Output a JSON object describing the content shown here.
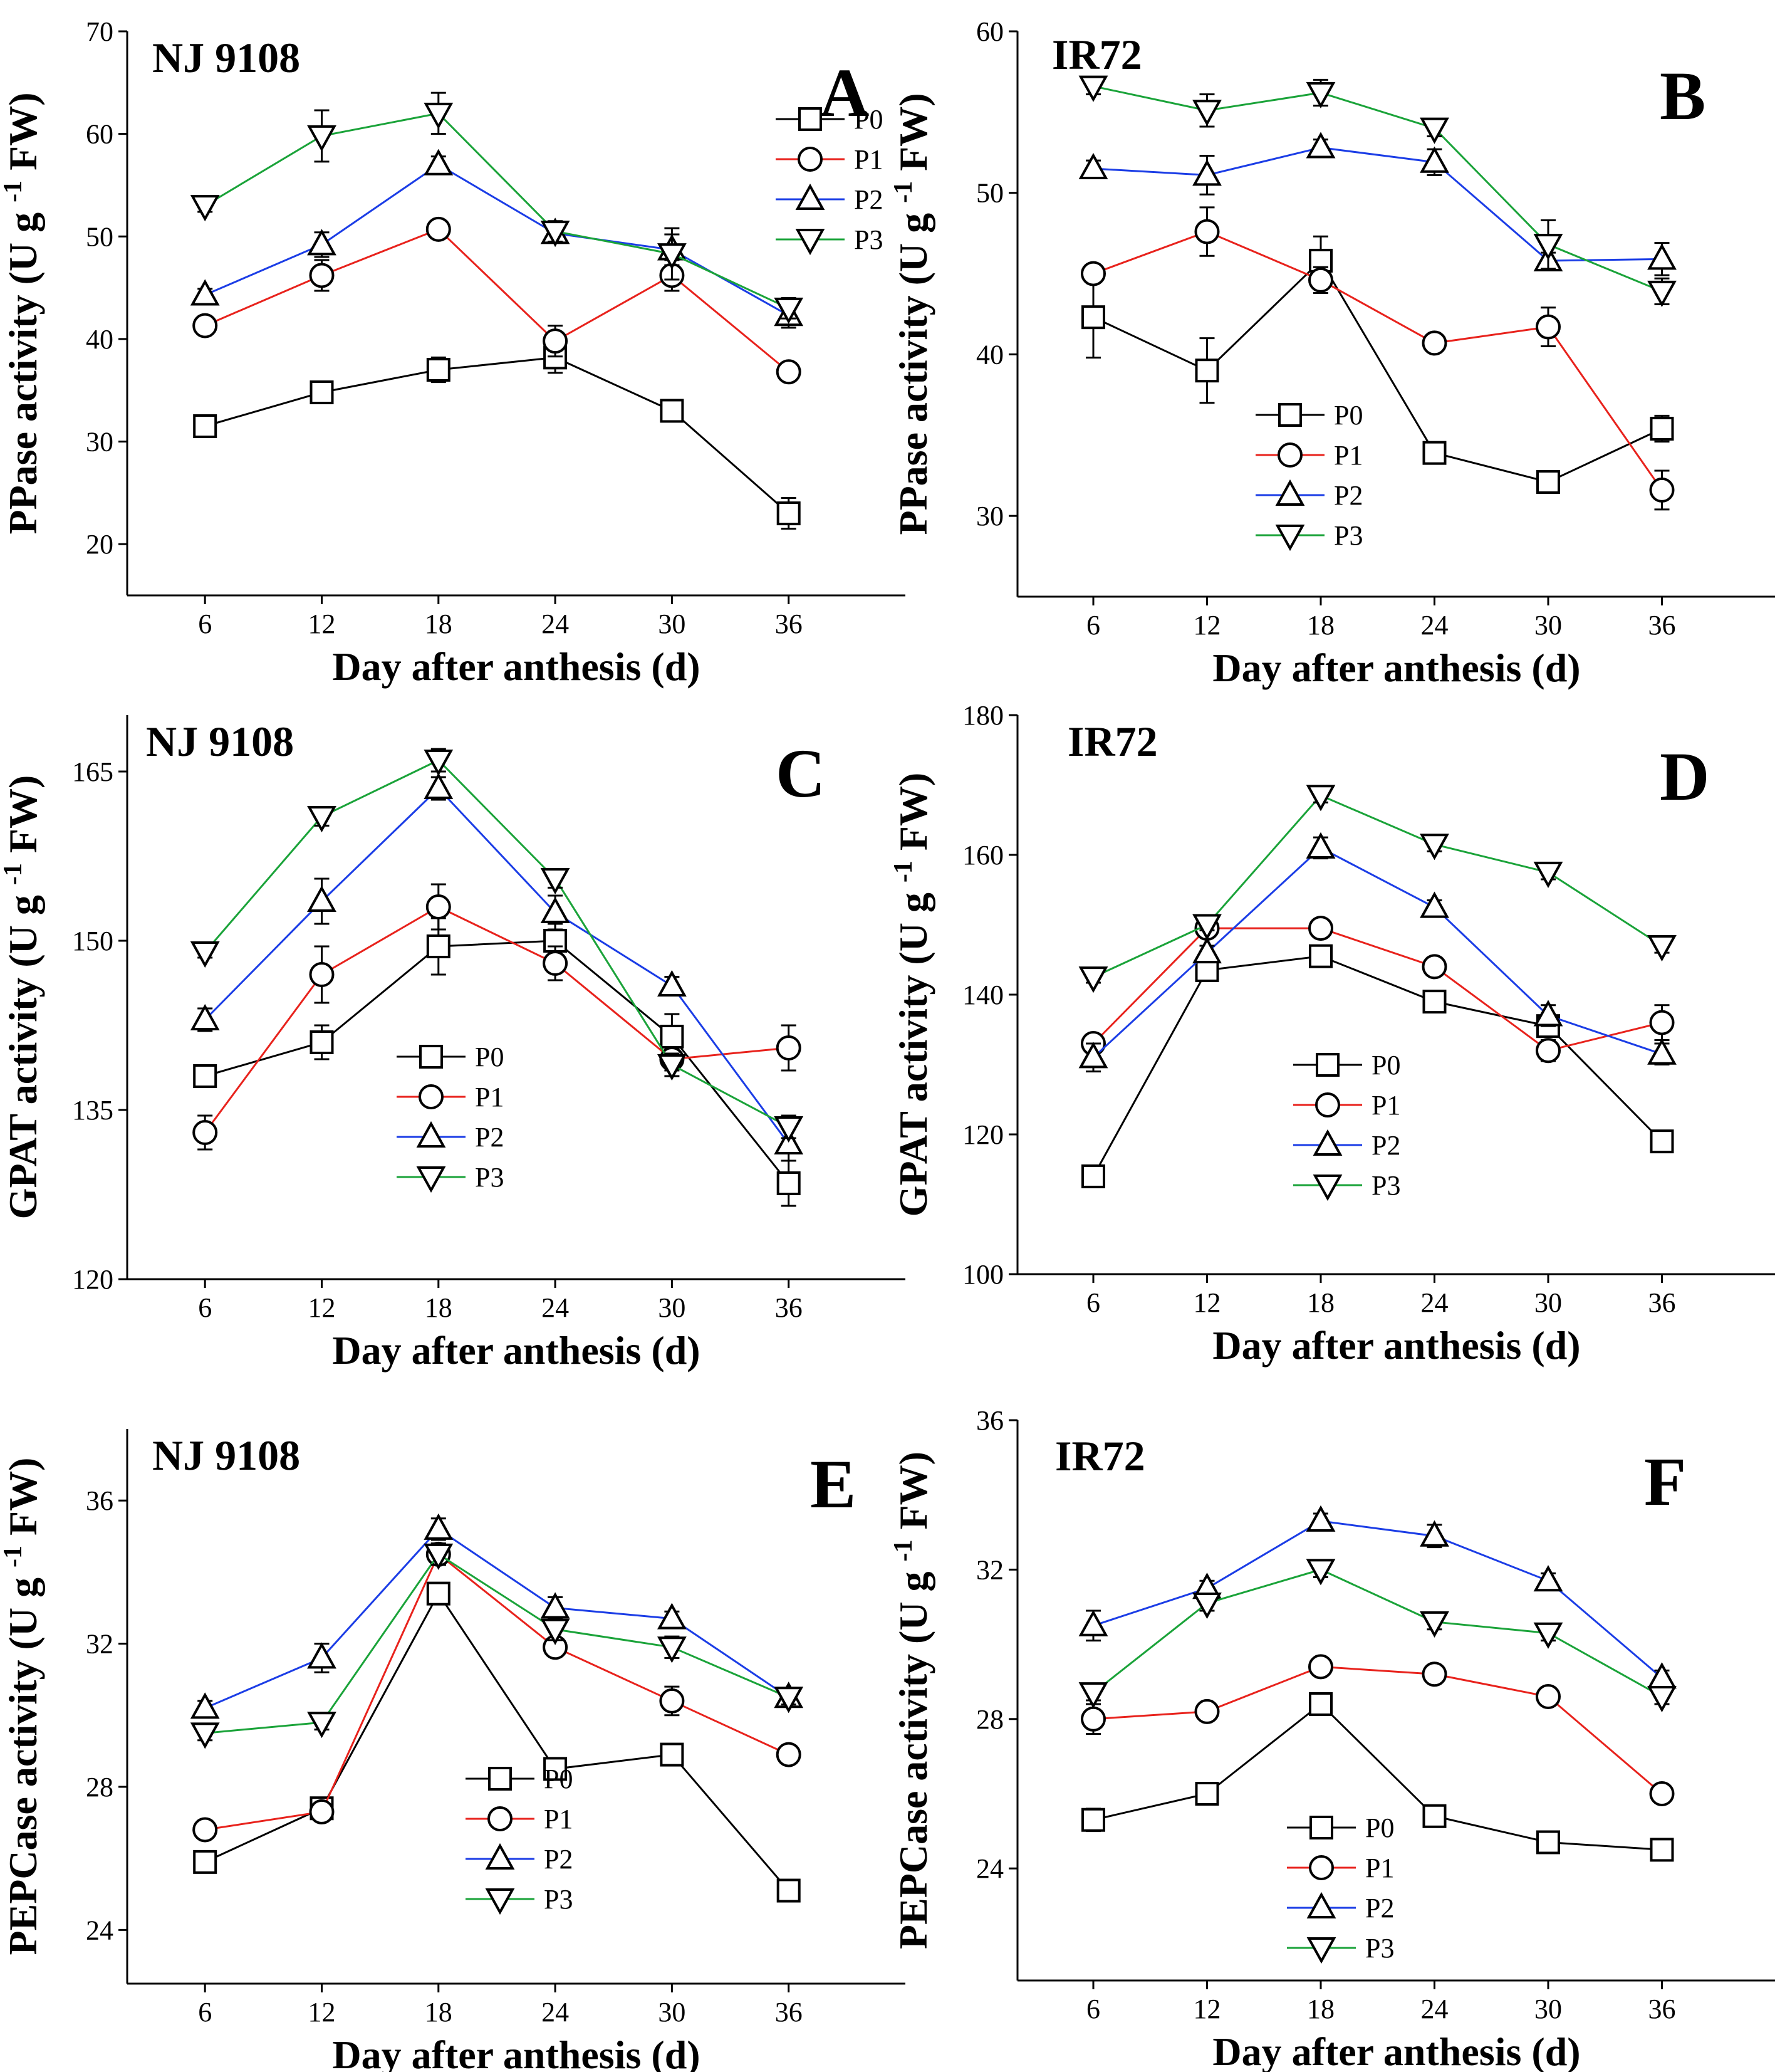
{
  "figure": {
    "legend_labels": [
      "P0",
      "P1",
      "P2",
      "P3"
    ],
    "series_colors": {
      "P0": "#000000",
      "P1": "#e8221c",
      "P2": "#1b3de6",
      "P3": "#1aa339"
    },
    "series_markers": {
      "P0": "square",
      "P1": "circle",
      "P2": "triangle-up",
      "P3": "triangle-down"
    }
  },
  "chart_data": [
    {
      "id": "A",
      "type": "line",
      "panel_label": "A",
      "variety": "NJ 9108",
      "title": "",
      "xlabel": "Day after anthesis (d)",
      "ylabel": "PPase  activity (U g -1 FW)",
      "ylabel_parts": {
        "main": "PPase  activity (U g ",
        "sup": "-1",
        "end": " FW)"
      },
      "x": [
        6,
        12,
        18,
        24,
        30,
        36
      ],
      "xticks": [
        "6",
        "12",
        "18",
        "24",
        "30",
        "36"
      ],
      "xlim": [
        2,
        42
      ],
      "ylim": [
        15,
        70
      ],
      "yticks": [
        20,
        30,
        40,
        50,
        60,
        70
      ],
      "legend_position": "top-right",
      "series": [
        {
          "name": "P0",
          "values": [
            31.5,
            34.8,
            37.0,
            38.2,
            33.0,
            23.0
          ],
          "errors": [
            1.0,
            0.6,
            1.2,
            1.5,
            0.5,
            1.5
          ]
        },
        {
          "name": "P1",
          "values": [
            41.3,
            46.2,
            50.7,
            39.8,
            46.2,
            36.8
          ],
          "errors": [
            0.8,
            1.5,
            0.8,
            1.5,
            1.5,
            0.6
          ]
        },
        {
          "name": "P2",
          "values": [
            44.3,
            49.2,
            57.0,
            50.3,
            48.7,
            42.3
          ],
          "errors": [
            0.6,
            1.2,
            0.8,
            0.8,
            1.5,
            1.2
          ]
        },
        {
          "name": "P3",
          "values": [
            53.0,
            59.8,
            62.0,
            50.5,
            48.3,
            43.0
          ],
          "errors": [
            0.6,
            2.5,
            2.0,
            1.0,
            2.5,
            1.0
          ]
        }
      ]
    },
    {
      "id": "B",
      "type": "line",
      "panel_label": "B",
      "variety": "IR72",
      "title": "",
      "xlabel": "Day after anthesis (d)",
      "ylabel": "PPase  activity (U g -1 FW)",
      "ylabel_parts": {
        "main": "PPase  activity (U g ",
        "sup": "-1",
        "end": " FW)"
      },
      "x": [
        6,
        12,
        18,
        24,
        30,
        36
      ],
      "xticks": [
        "6",
        "12",
        "18",
        "24",
        "30",
        "36"
      ],
      "xlim": [
        2,
        42
      ],
      "ylim": [
        25,
        60
      ],
      "yticks": [
        30,
        40,
        50,
        60
      ],
      "legend_position": "bottom-left",
      "series": [
        {
          "name": "P0",
          "values": [
            42.3,
            39.0,
            45.8,
            33.9,
            32.1,
            35.4
          ],
          "errors": [
            2.5,
            2.0,
            1.5,
            0.5,
            0.5,
            0.8
          ]
        },
        {
          "name": "P1",
          "values": [
            45.0,
            47.6,
            44.6,
            40.7,
            41.7,
            31.6
          ],
          "errors": [
            0.5,
            1.5,
            0.8,
            0.5,
            1.2,
            1.2
          ]
        },
        {
          "name": "P2",
          "values": [
            51.5,
            51.1,
            52.8,
            51.9,
            45.8,
            45.9
          ],
          "errors": [
            0.5,
            1.2,
            0.5,
            0.8,
            0.5,
            1.0
          ]
        },
        {
          "name": "P3",
          "values": [
            56.6,
            55.1,
            56.2,
            54.0,
            46.8,
            43.9
          ],
          "errors": [
            0.5,
            1.0,
            0.8,
            0.5,
            1.5,
            0.8
          ]
        }
      ]
    },
    {
      "id": "C",
      "type": "line",
      "panel_label": "C",
      "variety": "NJ 9108",
      "title": "",
      "xlabel": "Day after anthesis (d)",
      "ylabel": "GPAT  activity (U g -1 FW)",
      "ylabel_parts": {
        "main": "GPAT  activity (U g ",
        "sup": "-1",
        "end": " FW)"
      },
      "x": [
        6,
        12,
        18,
        24,
        30,
        36
      ],
      "xticks": [
        "6",
        "12",
        "18",
        "24",
        "30",
        "36"
      ],
      "xlim": [
        2,
        42
      ],
      "ylim": [
        120,
        170
      ],
      "yticks": [
        120,
        135,
        150,
        165
      ],
      "legend_position": "bottom-center",
      "series": [
        {
          "name": "P0",
          "values": [
            138.0,
            141.0,
            149.5,
            150.0,
            141.5,
            128.5
          ],
          "errors": [
            0.8,
            1.5,
            2.5,
            1.5,
            2.0,
            2.0
          ]
        },
        {
          "name": "P1",
          "values": [
            133.0,
            147.0,
            153.0,
            148.0,
            139.5,
            140.5
          ],
          "errors": [
            1.5,
            2.5,
            2.0,
            1.5,
            1.0,
            2.0
          ]
        },
        {
          "name": "P2",
          "values": [
            143.0,
            153.5,
            163.5,
            152.5,
            146.0,
            132.0
          ],
          "errors": [
            1.0,
            2.0,
            1.0,
            1.5,
            0.8,
            1.5
          ]
        },
        {
          "name": "P3",
          "values": [
            149.0,
            161.0,
            166.0,
            155.5,
            139.0,
            133.5
          ],
          "errors": [
            0.5,
            0.8,
            1.0,
            0.8,
            1.0,
            1.0
          ]
        }
      ]
    },
    {
      "id": "D",
      "type": "line",
      "panel_label": "D",
      "variety": "IR72",
      "title": "",
      "xlabel": "Day after anthesis (d)",
      "ylabel": "GPAT  activity (U g -1 FW)",
      "ylabel_parts": {
        "main": "GPAT  activity (U g ",
        "sup": "-1",
        "end": " FW)"
      },
      "x": [
        6,
        12,
        18,
        24,
        30,
        36
      ],
      "xticks": [
        "6",
        "12",
        "18",
        "24",
        "30",
        "36"
      ],
      "xlim": [
        2,
        42
      ],
      "ylim": [
        100,
        180
      ],
      "yticks": [
        100,
        120,
        140,
        160,
        180
      ],
      "legend_position": "bottom-center",
      "series": [
        {
          "name": "P0",
          "values": [
            114.0,
            143.5,
            145.5,
            139.0,
            135.5,
            119.0
          ],
          "errors": [
            0.8,
            1.0,
            1.0,
            1.0,
            1.0,
            1.5
          ]
        },
        {
          "name": "P1",
          "values": [
            133.0,
            149.5,
            149.5,
            144.0,
            132.0,
            136.0
          ],
          "errors": [
            1.0,
            1.0,
            1.0,
            1.0,
            1.5,
            2.5
          ]
        },
        {
          "name": "P2",
          "values": [
            131.0,
            146.0,
            161.0,
            152.5,
            137.0,
            131.5
          ],
          "errors": [
            2.0,
            1.0,
            1.5,
            1.0,
            1.5,
            1.5
          ]
        },
        {
          "name": "P3",
          "values": [
            142.5,
            150.0,
            168.5,
            161.5,
            157.5,
            147.0
          ],
          "errors": [
            0.8,
            0.8,
            1.0,
            1.0,
            1.0,
            1.0
          ]
        }
      ]
    },
    {
      "id": "E",
      "type": "line",
      "panel_label": "E",
      "variety": "NJ 9108",
      "title": "",
      "xlabel": "Day after anthesis (d)",
      "ylabel": "PEPCase  activity (U g -1 FW)",
      "ylabel_parts": {
        "main": "PEPCase  activity (U g ",
        "sup": "-1",
        "end": " FW)"
      },
      "x": [
        6,
        12,
        18,
        24,
        30,
        36
      ],
      "xticks": [
        "6",
        "12",
        "18",
        "24",
        "30",
        "36"
      ],
      "xlim": [
        2,
        42
      ],
      "ylim": [
        22.5,
        38
      ],
      "yticks": [
        24,
        28,
        32,
        36
      ],
      "legend_position": "bottom-center",
      "series": [
        {
          "name": "P0",
          "values": [
            25.9,
            27.4,
            33.4,
            28.5,
            28.9,
            25.1
          ],
          "errors": [
            0.2,
            0.2,
            0.2,
            0.2,
            0.2,
            0.2
          ]
        },
        {
          "name": "P1",
          "values": [
            26.8,
            27.3,
            34.5,
            31.9,
            30.4,
            28.9
          ],
          "errors": [
            0.2,
            0.2,
            0.3,
            0.2,
            0.4,
            0.2
          ]
        },
        {
          "name": "P2",
          "values": [
            30.2,
            31.6,
            35.2,
            33.0,
            32.7,
            30.5
          ],
          "errors": [
            0.2,
            0.4,
            0.3,
            0.3,
            0.2,
            0.2
          ]
        },
        {
          "name": "P3",
          "values": [
            29.5,
            29.8,
            34.5,
            32.4,
            31.9,
            30.5
          ],
          "errors": [
            0.2,
            0.2,
            0.3,
            0.3,
            0.3,
            0.2
          ]
        }
      ]
    },
    {
      "id": "F",
      "type": "line",
      "panel_label": "F",
      "variety": "IR72",
      "title": "",
      "xlabel": "Day after anthesis (d)",
      "ylabel": "PEPCase  activity (U g -1 FW)",
      "ylabel_parts": {
        "main": "PEPCase  activity (U g ",
        "sup": "-1",
        "end": " FW)"
      },
      "x": [
        6,
        12,
        18,
        24,
        30,
        36
      ],
      "xticks": [
        "6",
        "12",
        "18",
        "24",
        "30",
        "36"
      ],
      "xlim": [
        2,
        42
      ],
      "ylim": [
        21,
        36
      ],
      "yticks": [
        24,
        28,
        32,
        36
      ],
      "legend_position": "bottom-center",
      "series": [
        {
          "name": "P0",
          "values": [
            25.3,
            26.0,
            28.4,
            25.4,
            24.7,
            24.5
          ],
          "errors": [
            0.3,
            0.2,
            0.2,
            0.2,
            0.2,
            0.2
          ]
        },
        {
          "name": "P1",
          "values": [
            28.0,
            28.2,
            29.4,
            29.2,
            28.6,
            26.0
          ],
          "errors": [
            0.4,
            0.2,
            0.2,
            0.2,
            0.2,
            0.2
          ]
        },
        {
          "name": "P2",
          "values": [
            30.5,
            31.5,
            33.3,
            32.9,
            31.7,
            29.1
          ],
          "errors": [
            0.4,
            0.2,
            0.2,
            0.3,
            0.2,
            0.2
          ]
        },
        {
          "name": "P3",
          "values": [
            28.7,
            31.1,
            32.0,
            30.6,
            30.3,
            28.6
          ],
          "errors": [
            0.2,
            0.2,
            0.2,
            0.2,
            0.2,
            0.2
          ]
        }
      ]
    }
  ]
}
